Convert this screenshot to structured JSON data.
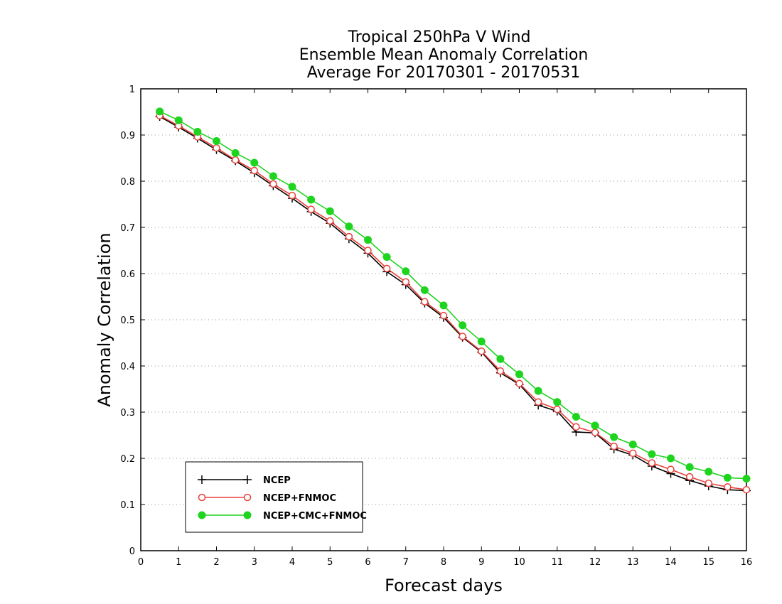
{
  "chart_data": {
    "type": "line",
    "title_lines": [
      "Tropical 250hPa V Wind",
      "Ensemble Mean Anomaly Correlation",
      "Average For 20170301 - 20170531"
    ],
    "xlabel": "Forecast days",
    "ylabel": "Anomaly Correlation",
    "xlim": [
      0,
      16
    ],
    "ylim": [
      0,
      1
    ],
    "xticks": [
      "0",
      "1",
      "2",
      "3",
      "4",
      "5",
      "6",
      "7",
      "8",
      "9",
      "10",
      "11",
      "12",
      "13",
      "14",
      "15",
      "16"
    ],
    "yticks": [
      "0",
      "0.1",
      "0.2",
      "0.3",
      "0.4",
      "0.5",
      "0.6",
      "0.7",
      "0.8",
      "0.9",
      "1"
    ],
    "grid": "horizontal dotted",
    "legend_position": "bottom-left",
    "x": [
      0.5,
      1,
      1.5,
      2,
      2.5,
      3,
      3.5,
      4,
      4.5,
      5,
      5.5,
      6,
      6.5,
      7,
      7.5,
      8,
      8.5,
      9,
      9.5,
      10,
      10.5,
      11,
      11.5,
      12,
      12.5,
      13,
      13.5,
      14,
      14.5,
      15,
      15.5,
      16
    ],
    "series": [
      {
        "name": "NCEP",
        "color": "#000000",
        "marker": "plus",
        "values": [
          0.94,
          0.917,
          0.893,
          0.868,
          0.844,
          0.818,
          0.79,
          0.763,
          0.734,
          0.709,
          0.675,
          0.644,
          0.604,
          0.576,
          0.536,
          0.505,
          0.462,
          0.43,
          0.385,
          0.36,
          0.315,
          0.302,
          0.257,
          0.255,
          0.22,
          0.207,
          0.183,
          0.167,
          0.152,
          0.14,
          0.132,
          0.13
        ]
      },
      {
        "name": "NCEP+FNMOC",
        "color": "#e8413a",
        "marker": "open-circle",
        "values": [
          0.942,
          0.92,
          0.896,
          0.872,
          0.846,
          0.823,
          0.794,
          0.769,
          0.739,
          0.714,
          0.68,
          0.65,
          0.611,
          0.582,
          0.539,
          0.509,
          0.464,
          0.432,
          0.389,
          0.362,
          0.322,
          0.306,
          0.268,
          0.256,
          0.226,
          0.211,
          0.19,
          0.176,
          0.16,
          0.146,
          0.138,
          0.132
        ]
      },
      {
        "name": "NCEP+CMC+FNMOC",
        "color": "#1fd41f",
        "marker": "filled-circle",
        "values": [
          0.951,
          0.932,
          0.907,
          0.887,
          0.861,
          0.84,
          0.811,
          0.788,
          0.76,
          0.735,
          0.702,
          0.673,
          0.636,
          0.605,
          0.564,
          0.531,
          0.488,
          0.453,
          0.415,
          0.382,
          0.346,
          0.322,
          0.29,
          0.271,
          0.246,
          0.23,
          0.209,
          0.2,
          0.181,
          0.171,
          0.158,
          0.156
        ]
      }
    ]
  }
}
